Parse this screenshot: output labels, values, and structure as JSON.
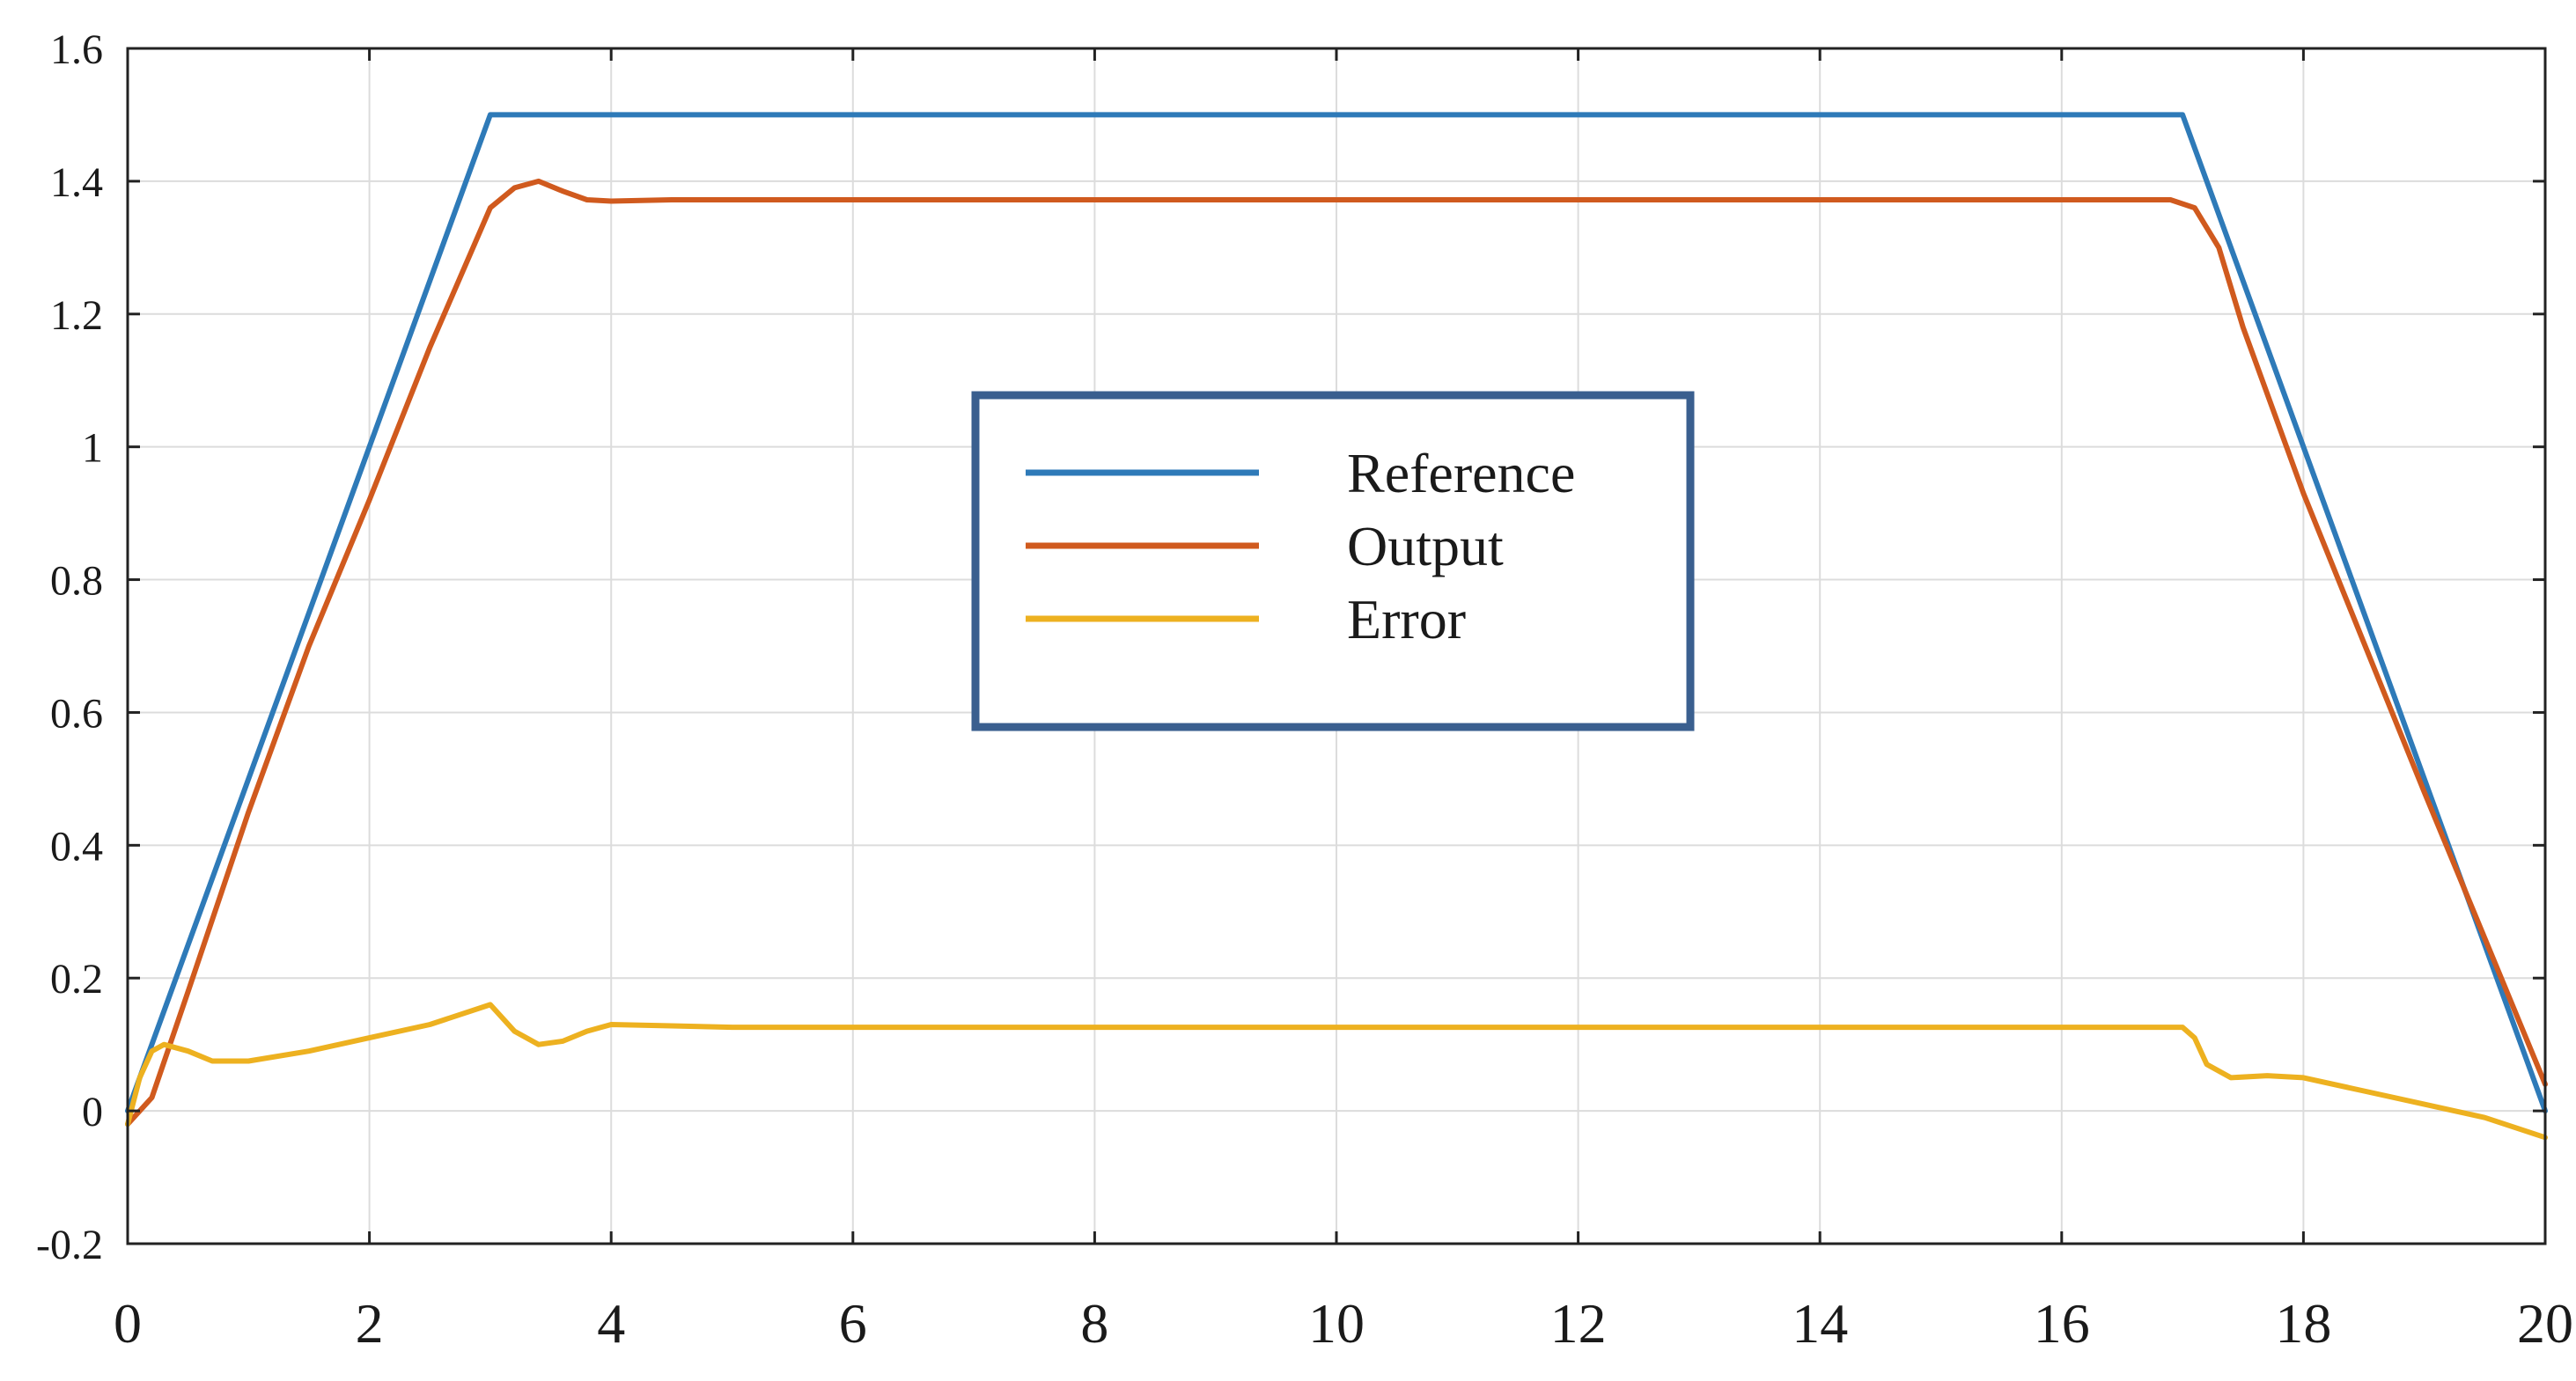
{
  "chart_data": {
    "type": "line",
    "title": "",
    "xlabel": "",
    "ylabel": "",
    "xlim": [
      0,
      20
    ],
    "ylim": [
      -0.2,
      1.6
    ],
    "x_ticks": [
      "0",
      "2",
      "4",
      "6",
      "8",
      "10",
      "12",
      "14",
      "16",
      "18",
      "20"
    ],
    "y_ticks": [
      "1.6",
      "1.4",
      "1.2",
      "1",
      "0.8",
      "0.6",
      "0.4",
      "0.2",
      "0",
      "-0.2"
    ],
    "grid": true,
    "legend_placement": "center",
    "series": [
      {
        "name": "Reference",
        "color": "#2e7ab8",
        "x": [
          0,
          3,
          17,
          20
        ],
        "y": [
          0,
          1.5,
          1.5,
          0
        ]
      },
      {
        "name": "Output",
        "color": "#d05a1e",
        "x": [
          0,
          0.2,
          0.5,
          1,
          1.5,
          2,
          2.5,
          3,
          3.2,
          3.4,
          3.6,
          3.8,
          4,
          4.5,
          5,
          10,
          16.9,
          17.1,
          17.3,
          17.5,
          18,
          19,
          20
        ],
        "y": [
          -0.02,
          0.02,
          0.18,
          0.45,
          0.7,
          0.92,
          1.15,
          1.36,
          1.39,
          1.4,
          1.385,
          1.372,
          1.37,
          1.372,
          1.372,
          1.372,
          1.372,
          1.36,
          1.3,
          1.18,
          0.93,
          0.48,
          0.04
        ]
      },
      {
        "name": "Error",
        "color": "#edb120",
        "x": [
          0,
          0.1,
          0.2,
          0.3,
          0.5,
          0.7,
          1,
          1.5,
          2,
          2.5,
          3,
          3.2,
          3.4,
          3.6,
          3.8,
          4,
          4.5,
          5,
          10,
          17,
          17.1,
          17.2,
          17.4,
          17.7,
          18,
          18.5,
          19,
          19.5,
          20
        ],
        "y": [
          -0.02,
          0.05,
          0.09,
          0.1,
          0.09,
          0.075,
          0.075,
          0.09,
          0.11,
          0.13,
          0.16,
          0.12,
          0.1,
          0.105,
          0.12,
          0.13,
          0.128,
          0.126,
          0.126,
          0.126,
          0.11,
          0.07,
          0.05,
          0.053,
          0.05,
          0.03,
          0.01,
          -0.01,
          -0.04
        ]
      }
    ]
  }
}
